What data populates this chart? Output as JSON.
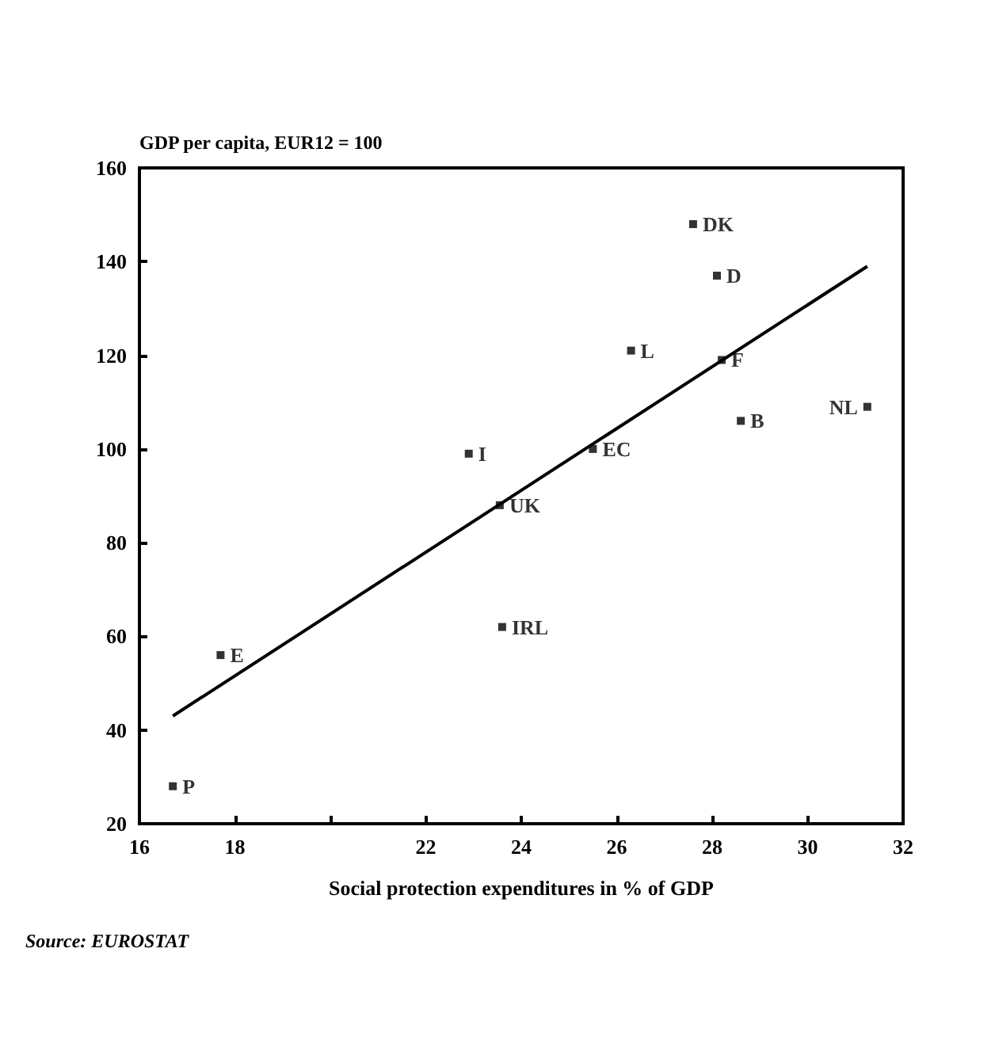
{
  "chart_data": {
    "type": "scatter",
    "ylabel": "GDP per capita, EUR12 = 100",
    "xlabel": "Social protection expenditures in % of GDP",
    "xlim": [
      16,
      32
    ],
    "xticks": [
      16,
      18,
      {
        "value": 20,
        "label": null
      },
      22,
      24,
      26,
      28,
      30,
      32
    ],
    "ylim": [
      20,
      160
    ],
    "yticks": [
      20,
      40,
      60,
      80,
      100,
      120,
      140,
      160
    ],
    "grid": false,
    "marker": "square",
    "series": [
      {
        "color": "#000000",
        "x": [
          16.7,
          17.7,
          22.9,
          23.55,
          23.6,
          25.5,
          26.3,
          27.6,
          28.1,
          28.2,
          28.6,
          31.25
        ],
        "values": [
          28,
          56,
          99,
          88,
          62,
          100,
          121,
          148,
          137,
          119,
          106,
          109
        ]
      },
      {
        "type": "line",
        "color": "#000000",
        "line_style": "solid",
        "marker": "none",
        "x": [
          16.7,
          31.25
        ],
        "values": [
          43,
          139
        ]
      }
    ],
    "annotations": [
      {
        "text": "P",
        "x": 16.7,
        "y": 28
      },
      {
        "text": "E",
        "x": 17.7,
        "y": 56
      },
      {
        "text": "I",
        "x": 22.9,
        "y": 99
      },
      {
        "text": "UK",
        "x": 23.55,
        "y": 88
      },
      {
        "text": "IRL",
        "x": 23.6,
        "y": 62
      },
      {
        "text": "EC",
        "x": 25.5,
        "y": 100
      },
      {
        "text": "L",
        "x": 26.3,
        "y": 121
      },
      {
        "text": "DK",
        "x": 27.6,
        "y": 148
      },
      {
        "text": "D",
        "x": 28.1,
        "y": 137
      },
      {
        "text": "F",
        "x": 28.2,
        "y": 119
      },
      {
        "text": "B",
        "x": 28.6,
        "y": 106
      },
      {
        "text": "NL",
        "x": 31.25,
        "y": 109
      },
      "Source: EUROSTAT"
    ]
  }
}
